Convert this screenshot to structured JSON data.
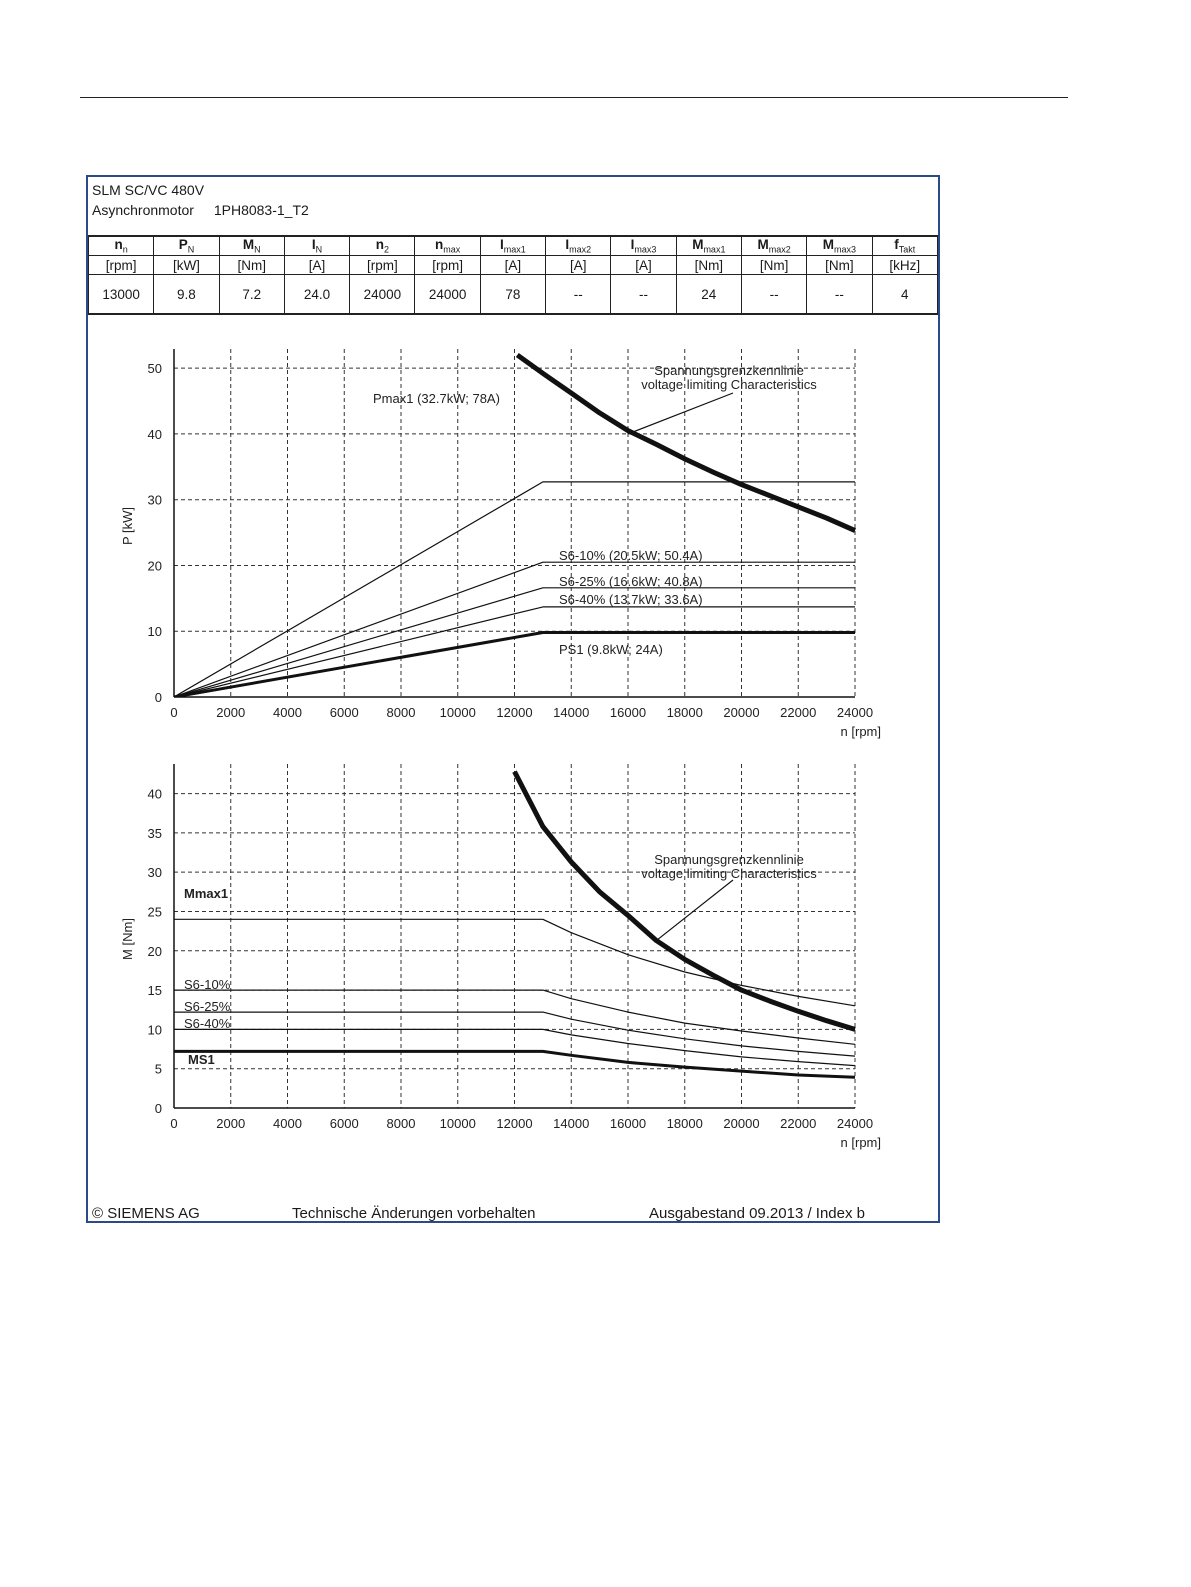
{
  "header": {
    "line1": "SLM SC/VC 480V",
    "line2_label": "Asynchronmotor",
    "line2_model": "1PH8083-1_T2"
  },
  "table": {
    "columns": [
      {
        "sym": "n",
        "sub": "n",
        "unit": "[rpm]",
        "value": "13000"
      },
      {
        "sym": "P",
        "sub": "N",
        "unit": "[kW]",
        "value": "9.8"
      },
      {
        "sym": "M",
        "sub": "N",
        "unit": "[Nm]",
        "value": "7.2"
      },
      {
        "sym": "I",
        "sub": "N",
        "unit": "[A]",
        "value": "24.0"
      },
      {
        "sym": "n",
        "sub": "2",
        "unit": "[rpm]",
        "value": "24000"
      },
      {
        "sym": "n",
        "sub": "max",
        "unit": "[rpm]",
        "value": "24000"
      },
      {
        "sym": "I",
        "sub": "max1",
        "unit": "[A]",
        "value": "78"
      },
      {
        "sym": "I",
        "sub": "max2",
        "unit": "[A]",
        "value": "--"
      },
      {
        "sym": "I",
        "sub": "max3",
        "unit": "[A]",
        "value": "--"
      },
      {
        "sym": "M",
        "sub": "max1",
        "unit": "[Nm]",
        "value": "24"
      },
      {
        "sym": "M",
        "sub": "max2",
        "unit": "[Nm]",
        "value": "--"
      },
      {
        "sym": "M",
        "sub": "max3",
        "unit": "[Nm]",
        "value": "--"
      },
      {
        "sym": "f",
        "sub": "Takt",
        "unit": "[kHz]",
        "value": "4"
      }
    ]
  },
  "chart_data": [
    {
      "type": "line",
      "ylabel": "P [kW]",
      "xlabel": "n [rpm]",
      "xlim": [
        0,
        24000
      ],
      "ylim": [
        0,
        52
      ],
      "xticks": [
        0,
        2000,
        4000,
        6000,
        8000,
        10000,
        12000,
        14000,
        16000,
        18000,
        20000,
        22000,
        24000
      ],
      "yticks": [
        0,
        10,
        20,
        30,
        40,
        50
      ],
      "grid": true,
      "series": [
        {
          "name": "Spannungsgrenzkennlinie voltage limiting Characteristics",
          "style": "bold",
          "x": [
            12100,
            13000,
            14000,
            15000,
            16000,
            17000,
            18000,
            19000,
            20000,
            21000,
            22000,
            23000,
            24000
          ],
          "y": [
            52,
            49.2,
            46.2,
            43.2,
            40.5,
            38.4,
            36.2,
            34.2,
            32.3,
            30.6,
            28.9,
            27.2,
            25.3
          ]
        },
        {
          "name": "Pmax1 (32.7kW; 78A)",
          "style": "thin",
          "x": [
            0,
            13000,
            24000
          ],
          "y": [
            0,
            32.7,
            32.7
          ]
        },
        {
          "name": "S6-10% (20.5kW; 50.4A)",
          "style": "thin",
          "x": [
            0,
            13000,
            24000
          ],
          "y": [
            0,
            20.5,
            20.5
          ]
        },
        {
          "name": "S6-25% (16.6kW; 40.8A)",
          "style": "thin",
          "x": [
            0,
            13000,
            24000
          ],
          "y": [
            0,
            16.6,
            16.6
          ]
        },
        {
          "name": "S6-40% (13.7kW; 33.6A)",
          "style": "thin",
          "x": [
            0,
            13000,
            24000
          ],
          "y": [
            0,
            13.7,
            13.7
          ]
        },
        {
          "name": "PS1 (9.8kW; 24A)",
          "style": "bold",
          "x": [
            0,
            13000,
            24000
          ],
          "y": [
            0,
            9.8,
            9.8
          ]
        }
      ],
      "annotations": [
        "Spannungsgrenzkennlinie",
        "voltage limiting  Characteristics"
      ]
    },
    {
      "type": "line",
      "ylabel": "M [Nm]",
      "xlabel": "n [rpm]",
      "xlim": [
        0,
        24000
      ],
      "ylim": [
        0,
        43
      ],
      "xticks": [
        0,
        2000,
        4000,
        6000,
        8000,
        10000,
        12000,
        14000,
        16000,
        18000,
        20000,
        22000,
        24000
      ],
      "yticks": [
        0,
        5,
        10,
        15,
        20,
        25,
        30,
        35,
        40
      ],
      "grid": true,
      "series": [
        {
          "name": "Spannungsgrenzkennlinie voltage limiting Characteristics",
          "style": "bold",
          "x": [
            12000,
            13000,
            14000,
            15000,
            16000,
            17000,
            18000,
            19000,
            20000,
            21000,
            22000,
            23000,
            24000
          ],
          "y": [
            42.8,
            35.8,
            31.3,
            27.5,
            24.5,
            21.3,
            18.9,
            16.9,
            15.0,
            13.6,
            12.3,
            11.1,
            10.0
          ]
        },
        {
          "name": "Mmax1",
          "style": "thin",
          "x": [
            0,
            13000,
            14000,
            16000,
            18000,
            20000,
            22000,
            24000
          ],
          "y": [
            24,
            24,
            22.3,
            19.5,
            17.3,
            15.6,
            14.2,
            13.0
          ]
        },
        {
          "name": "S6-10%",
          "style": "thin",
          "x": [
            0,
            13000,
            14000,
            16000,
            18000,
            20000,
            22000,
            24000
          ],
          "y": [
            15,
            15,
            13.9,
            12.2,
            10.8,
            9.8,
            8.9,
            8.1
          ]
        },
        {
          "name": "S6-25%",
          "style": "thin",
          "x": [
            0,
            13000,
            14000,
            16000,
            18000,
            20000,
            22000,
            24000
          ],
          "y": [
            12.2,
            12.2,
            11.3,
            9.9,
            8.8,
            7.9,
            7.2,
            6.6
          ]
        },
        {
          "name": "S6-40%",
          "style": "thin",
          "x": [
            0,
            13000,
            14000,
            16000,
            18000,
            20000,
            22000,
            24000
          ],
          "y": [
            10,
            10,
            9.3,
            8.2,
            7.3,
            6.5,
            5.9,
            5.4
          ]
        },
        {
          "name": "MS1",
          "style": "bold",
          "x": [
            0,
            13000,
            14000,
            16000,
            18000,
            20000,
            22000,
            24000
          ],
          "y": [
            7.2,
            7.2,
            6.7,
            5.8,
            5.2,
            4.7,
            4.2,
            3.9
          ]
        }
      ],
      "annotations": [
        "Spannungsgrenzkennlinie",
        "voltage limiting  Characteristics"
      ]
    }
  ],
  "footer": {
    "copyright": "© SIEMENS AG",
    "notice": "Technische Änderungen vorbehalten",
    "edition": "Ausgabestand 09.2013 / Index b"
  }
}
